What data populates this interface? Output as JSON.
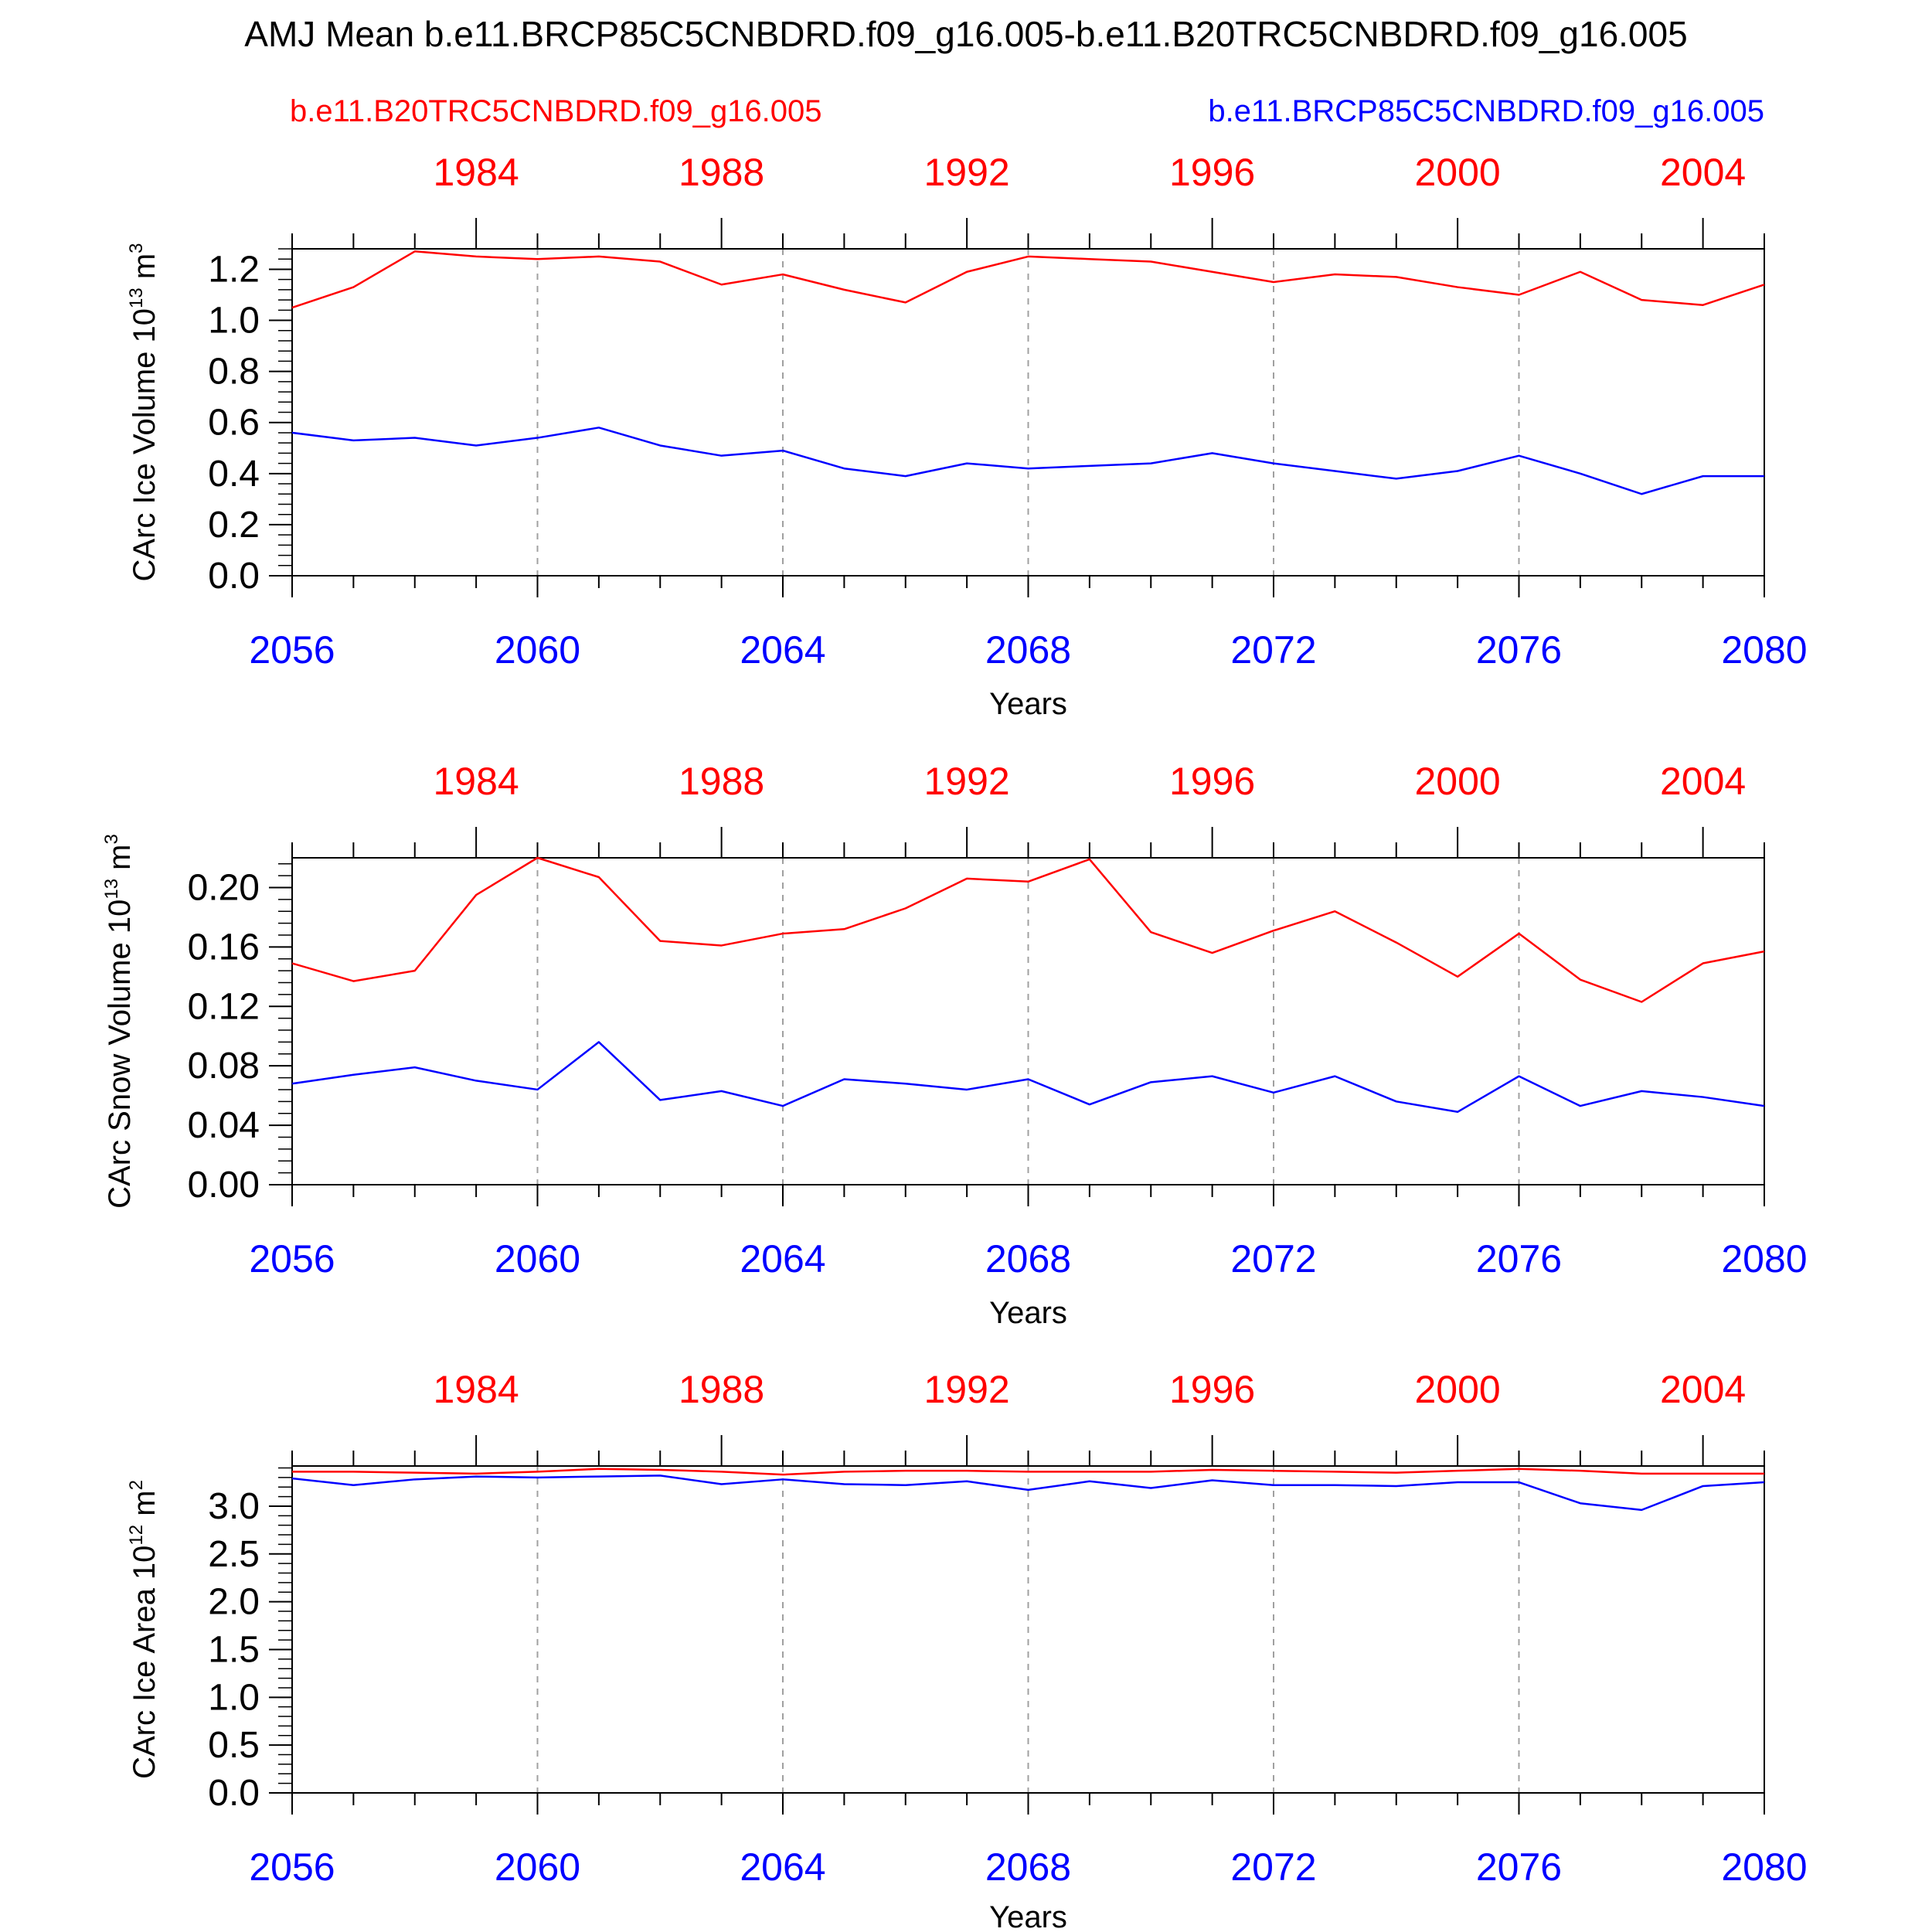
{
  "figure": {
    "title": "AMJ Mean b.e11.BRCP85C5CNBDRD.f09_g16.005-b.e11.B20TRC5CNBDRD.f09_g16.005",
    "legend_left": "b.e11.B20TRC5CNBDRD.f09_g16.005",
    "legend_right": "b.e11.BRCP85C5CNBDRD.f09_g16.005"
  },
  "colors": {
    "series_red": "#ff0000",
    "series_blue": "#0000ff",
    "gridline": "#a0a0a0",
    "frame": "#000000"
  },
  "chart_data": [
    {
      "type": "line",
      "ylabel": "CArc Ice Volume 10",
      "ylabel_exp": "13",
      "ylabel_unit": " m",
      "ylabel_unit_exp": "3",
      "xlabel": "Years",
      "xlim": [
        2056,
        2080
      ],
      "ylim": [
        0.0,
        1.28
      ],
      "yticks": [
        "0.0",
        "0.2",
        "0.4",
        "0.6",
        "0.8",
        "1.0",
        "1.2"
      ],
      "ytick_values": [
        0.0,
        0.2,
        0.4,
        0.6,
        0.8,
        1.0,
        1.2
      ],
      "x_bottom_ticks": [
        "2056",
        "2060",
        "2064",
        "2068",
        "2072",
        "2076",
        "2080"
      ],
      "x_top_ticks": [
        "1984",
        "1988",
        "1992",
        "1996",
        "2000",
        "2004"
      ],
      "x": [
        2056,
        2057,
        2058,
        2059,
        2060,
        2061,
        2062,
        2063,
        2064,
        2065,
        2066,
        2067,
        2068,
        2069,
        2070,
        2071,
        2072,
        2073,
        2074,
        2075,
        2076,
        2077,
        2078,
        2079,
        2080
      ],
      "series": [
        {
          "name": "b.e11.B20TRC5CNBDRD.f09_g16.005",
          "color": "#ff0000",
          "values": [
            1.05,
            1.13,
            1.27,
            1.25,
            1.24,
            1.25,
            1.23,
            1.14,
            1.18,
            1.12,
            1.07,
            1.19,
            1.25,
            1.24,
            1.23,
            1.19,
            1.15,
            1.18,
            1.17,
            1.13,
            1.1,
            1.19,
            1.08,
            1.06,
            1.14
          ]
        },
        {
          "name": "b.e11.BRCP85C5CNBDRD.f09_g16.005",
          "color": "#0000ff",
          "values": [
            0.56,
            0.53,
            0.54,
            0.51,
            0.54,
            0.58,
            0.51,
            0.47,
            0.49,
            0.42,
            0.39,
            0.44,
            0.42,
            0.43,
            0.44,
            0.48,
            0.44,
            0.41,
            0.38,
            0.41,
            0.47,
            0.4,
            0.32,
            0.39,
            0.39
          ]
        }
      ]
    },
    {
      "type": "line",
      "ylabel": "CArc Snow Volume 10",
      "ylabel_exp": "13",
      "ylabel_unit": " m",
      "ylabel_unit_exp": "3",
      "xlabel": "Years",
      "xlim": [
        2056,
        2080
      ],
      "ylim": [
        0.0,
        0.22
      ],
      "yticks": [
        "0.00",
        "0.04",
        "0.08",
        "0.12",
        "0.16",
        "0.20"
      ],
      "ytick_values": [
        0.0,
        0.04,
        0.08,
        0.12,
        0.16,
        0.2
      ],
      "x_bottom_ticks": [
        "2056",
        "2060",
        "2064",
        "2068",
        "2072",
        "2076",
        "2080"
      ],
      "x_top_ticks": [
        "1984",
        "1988",
        "1992",
        "1996",
        "2000",
        "2004"
      ],
      "x": [
        2056,
        2057,
        2058,
        2059,
        2060,
        2061,
        2062,
        2063,
        2064,
        2065,
        2066,
        2067,
        2068,
        2069,
        2070,
        2071,
        2072,
        2073,
        2074,
        2075,
        2076,
        2077,
        2078,
        2079,
        2080
      ],
      "series": [
        {
          "name": "b.e11.B20TRC5CNBDRD.f09_g16.005",
          "color": "#ff0000",
          "values": [
            0.149,
            0.137,
            0.144,
            0.195,
            0.22,
            0.207,
            0.164,
            0.161,
            0.169,
            0.172,
            0.186,
            0.206,
            0.204,
            0.219,
            0.17,
            0.156,
            0.171,
            0.184,
            0.163,
            0.14,
            0.169,
            0.138,
            0.123,
            0.149,
            0.157
          ]
        },
        {
          "name": "b.e11.BRCP85C5CNBDRD.f09_g16.005",
          "color": "#0000ff",
          "values": [
            0.068,
            0.074,
            0.079,
            0.07,
            0.064,
            0.096,
            0.057,
            0.063,
            0.053,
            0.071,
            0.068,
            0.064,
            0.071,
            0.054,
            0.069,
            0.073,
            0.062,
            0.073,
            0.056,
            0.049,
            0.073,
            0.053,
            0.063,
            0.059,
            0.053
          ]
        }
      ]
    },
    {
      "type": "line",
      "ylabel": "CArc Ice Area 10",
      "ylabel_exp": "12",
      "ylabel_unit": " m",
      "ylabel_unit_exp": "2",
      "xlabel": "Years",
      "xlim": [
        2056,
        2080
      ],
      "ylim": [
        0.0,
        3.42
      ],
      "yticks": [
        "0.0",
        "0.5",
        "1.0",
        "1.5",
        "2.0",
        "2.5",
        "3.0"
      ],
      "ytick_values": [
        0.0,
        0.5,
        1.0,
        1.5,
        2.0,
        2.5,
        3.0
      ],
      "x_bottom_ticks": [
        "2056",
        "2060",
        "2064",
        "2068",
        "2072",
        "2076",
        "2080"
      ],
      "x_top_ticks": [
        "1984",
        "1988",
        "1992",
        "1996",
        "2000",
        "2004"
      ],
      "x": [
        2056,
        2057,
        2058,
        2059,
        2060,
        2061,
        2062,
        2063,
        2064,
        2065,
        2066,
        2067,
        2068,
        2069,
        2070,
        2071,
        2072,
        2073,
        2074,
        2075,
        2076,
        2077,
        2078,
        2079,
        2080
      ],
      "series": [
        {
          "name": "b.e11.B20TRC5CNBDRD.f09_g16.005",
          "color": "#ff0000",
          "values": [
            3.36,
            3.36,
            3.35,
            3.34,
            3.36,
            3.39,
            3.38,
            3.36,
            3.33,
            3.36,
            3.37,
            3.37,
            3.36,
            3.36,
            3.36,
            3.38,
            3.37,
            3.36,
            3.35,
            3.37,
            3.39,
            3.37,
            3.34,
            3.34,
            3.34
          ]
        },
        {
          "name": "b.e11.BRCP85C5CNBDRD.f09_g16.005",
          "color": "#0000ff",
          "values": [
            3.29,
            3.22,
            3.28,
            3.31,
            3.3,
            3.31,
            3.32,
            3.23,
            3.28,
            3.23,
            3.22,
            3.26,
            3.17,
            3.26,
            3.19,
            3.27,
            3.22,
            3.22,
            3.21,
            3.25,
            3.25,
            3.03,
            2.96,
            3.21,
            3.25
          ]
        }
      ]
    }
  ]
}
